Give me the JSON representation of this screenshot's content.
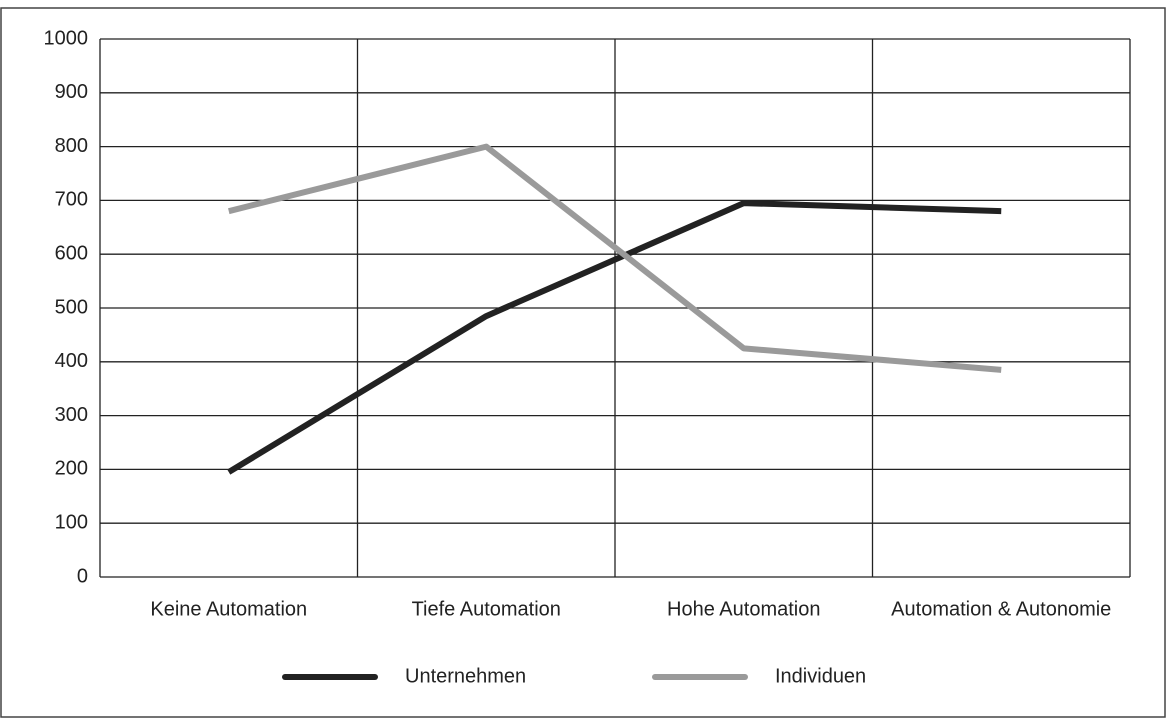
{
  "chart_data": {
    "type": "line",
    "categories": [
      "Keine Automation",
      "Tiefe Automation",
      "Hohe Automation",
      "Automation & Autonomie"
    ],
    "series": [
      {
        "name": "Unternehmen",
        "color": "#222222",
        "values": [
          195,
          485,
          695,
          680
        ]
      },
      {
        "name": "Individuen",
        "color": "#9a9a9a",
        "values": [
          680,
          800,
          425,
          385
        ]
      }
    ],
    "ylim": [
      0,
      1000
    ],
    "yticks": [
      0,
      100,
      200,
      300,
      400,
      500,
      600,
      700,
      800,
      900,
      1000
    ],
    "grid": true,
    "legend": "bottom"
  }
}
